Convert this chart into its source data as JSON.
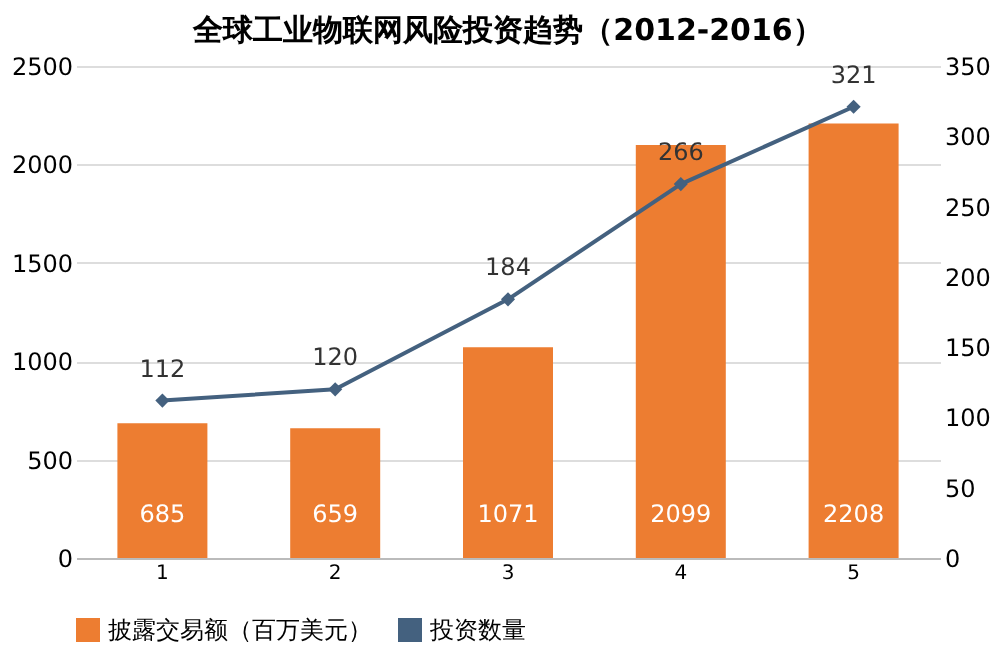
{
  "chart_data": {
    "type": "bar",
    "title": "全球工业物联网风险投资趋势（2012-2016）",
    "categories": [
      "1",
      "2",
      "3",
      "4",
      "5"
    ],
    "series": [
      {
        "name": "披露交易额（百万美元）",
        "color": "#ed7d31",
        "values": [
          685,
          659,
          1071,
          2099,
          2208
        ]
      },
      {
        "name": "投资数量",
        "type": "line",
        "axis": "y2",
        "color": "#44617f",
        "marker": "diamond",
        "values": [
          112,
          120,
          184,
          266,
          321
        ]
      }
    ],
    "ylim": [
      0,
      2500
    ],
    "yticks": [
      0,
      500,
      1000,
      1500,
      2000,
      2500
    ],
    "y2lim": [
      0,
      350
    ],
    "y2ticks": [
      0,
      50,
      100,
      150,
      200,
      250,
      300,
      350
    ],
    "grid": "y",
    "legend": "bottom",
    "data_labels": true
  }
}
